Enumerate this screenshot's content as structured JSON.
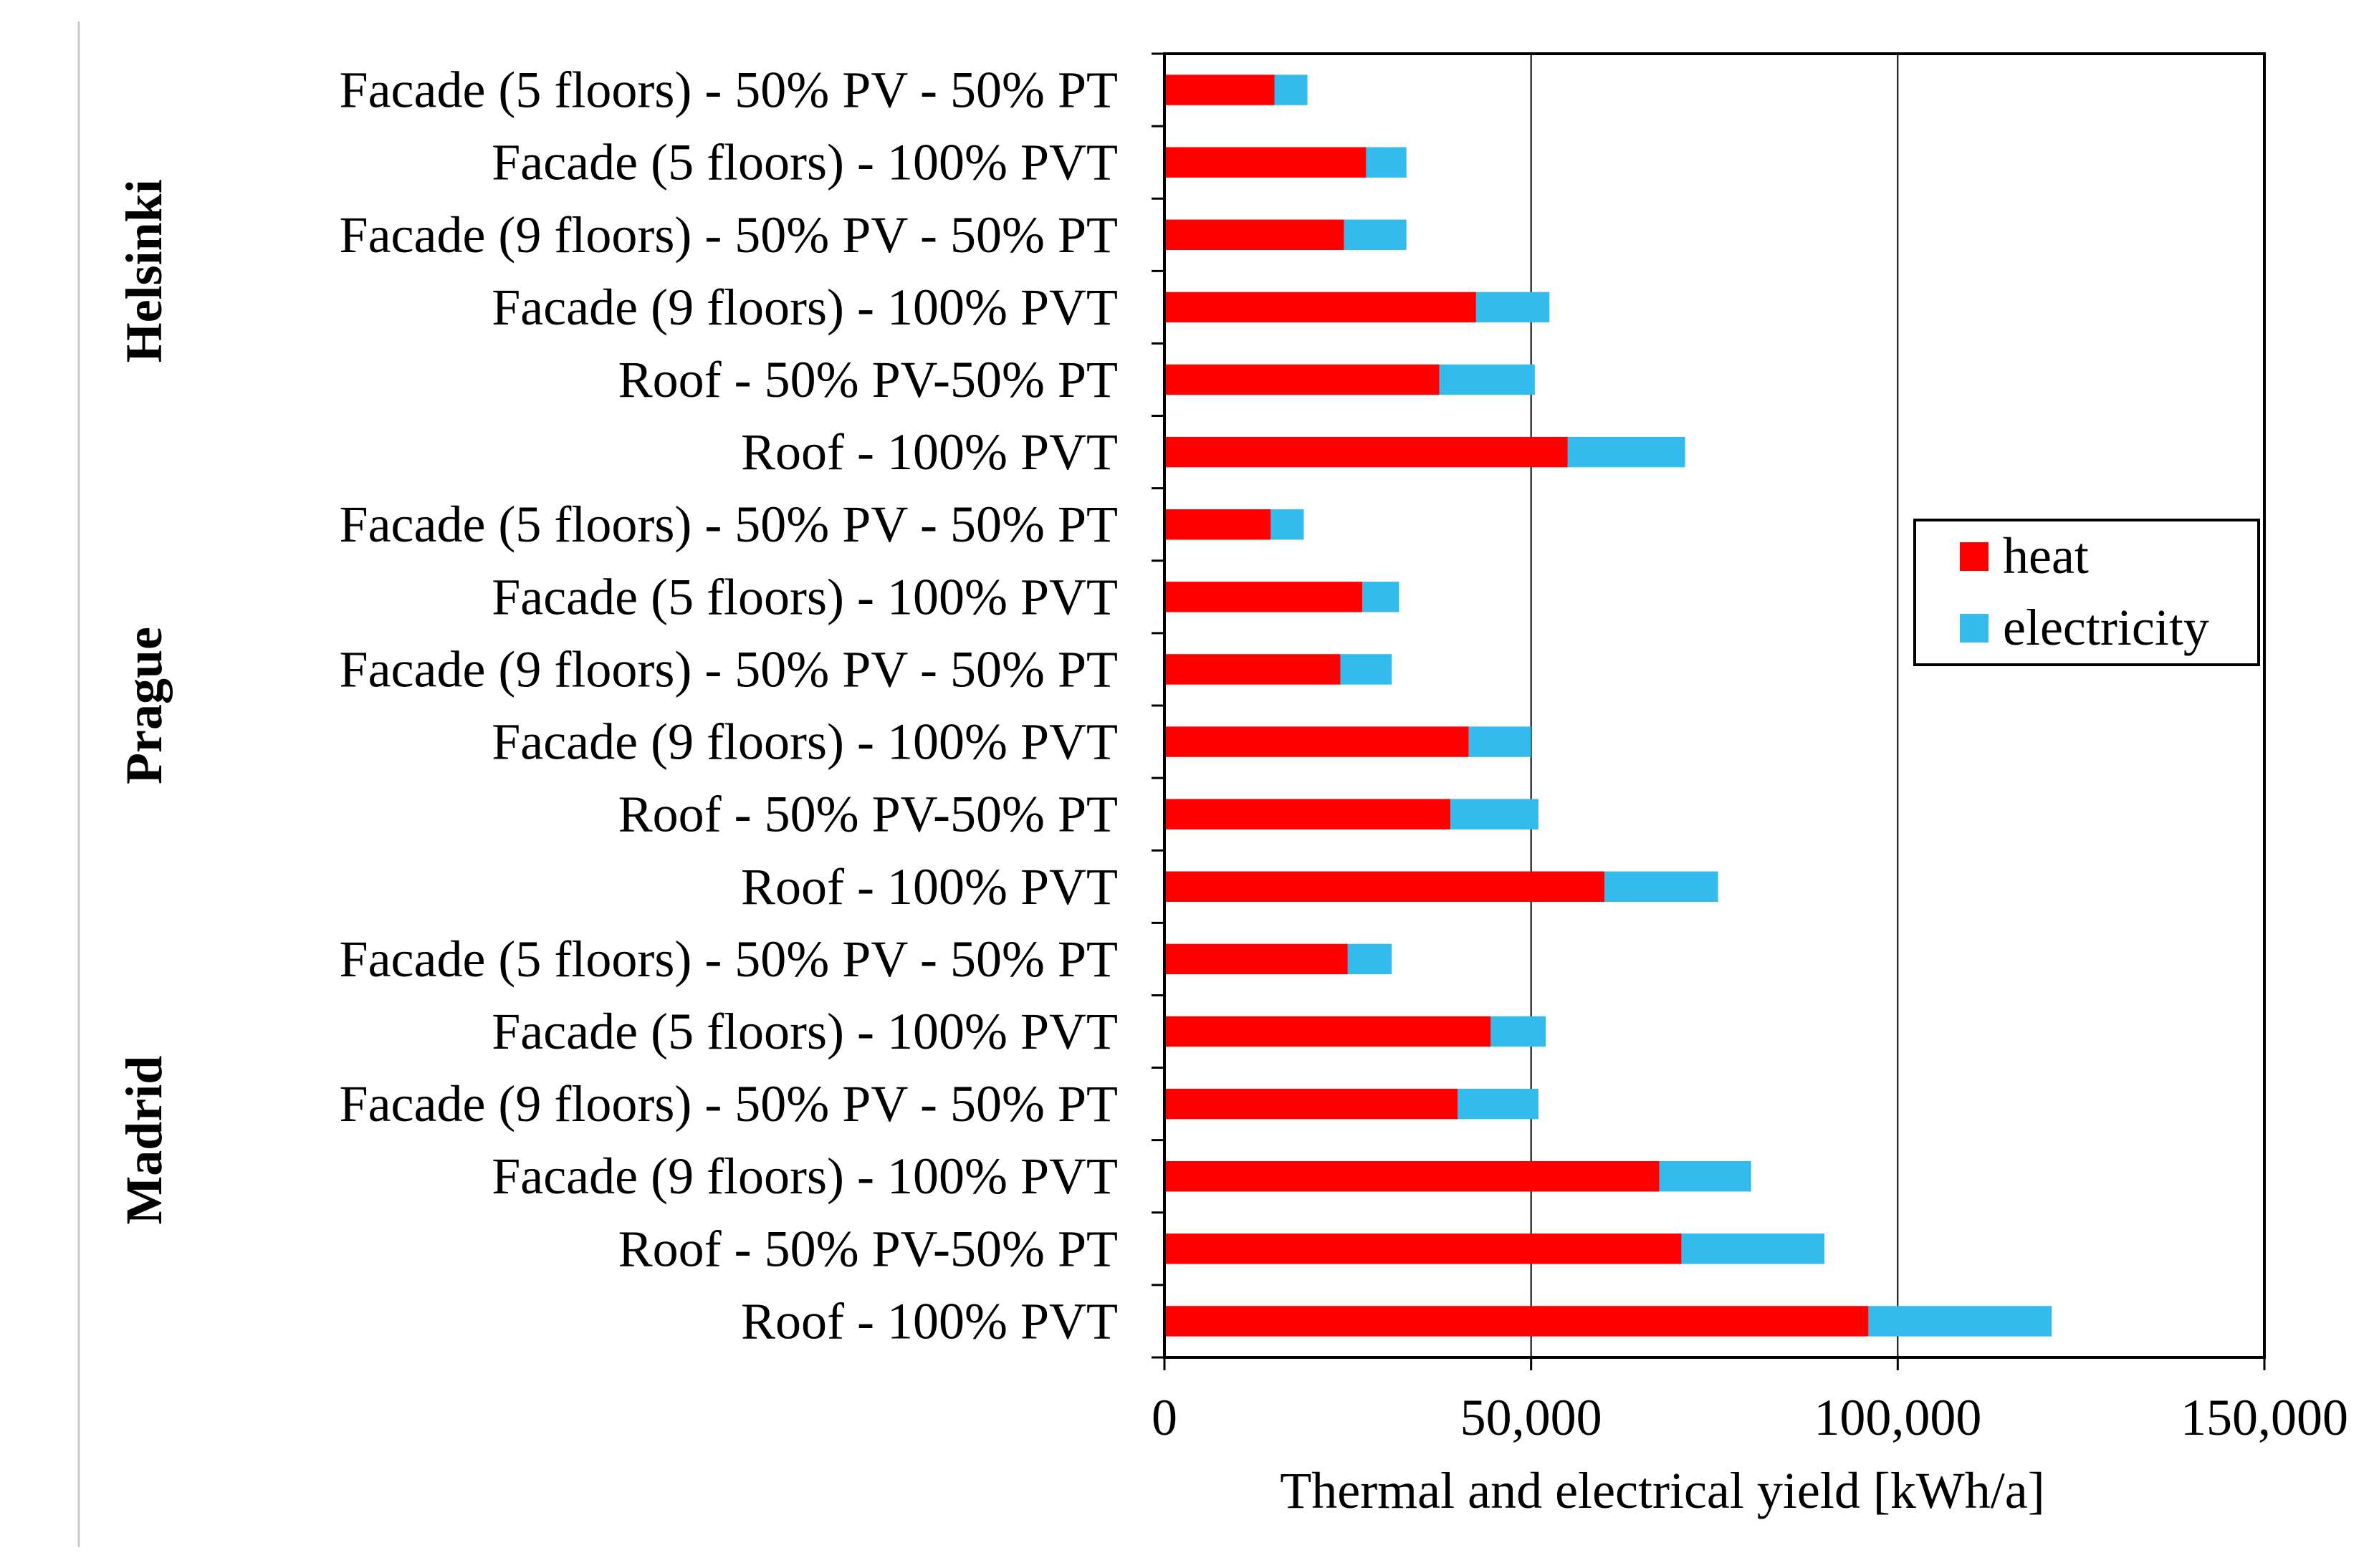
{
  "chart_data": {
    "type": "bar",
    "orientation": "horizontal",
    "stacked": true,
    "title": "",
    "xlabel": "Thermal and electrical yield [kWh/a]",
    "ylabel": "",
    "xlim": [
      0,
      150000
    ],
    "xticks": [
      0,
      50000,
      100000,
      150000
    ],
    "xtick_labels": [
      "0",
      "50,000",
      "100,000",
      "150,000"
    ],
    "grid": "vertical",
    "legend_position": "right",
    "groups": [
      {
        "name": "Helsinki",
        "from": 0,
        "to": 5
      },
      {
        "name": "Prague",
        "from": 6,
        "to": 11
      },
      {
        "name": "Madrid",
        "from": 12,
        "to": 17
      }
    ],
    "categories": [
      "Facade (5 floors) - 50% PV - 50% PT",
      "Facade (5 floors) - 100% PVT",
      "Facade (9 floors) - 50% PV - 50% PT",
      "Facade (9 floors) - 100% PVT",
      "Roof - 50% PV-50% PT",
      "Roof - 100% PVT",
      "Facade (5 floors) - 50% PV - 50% PT",
      "Facade (5 floors) - 100% PVT",
      "Facade (9 floors) - 50% PV - 50% PT",
      "Facade (9 floors) - 100% PVT",
      "Roof - 50% PV-50% PT",
      "Roof - 100% PVT",
      "Facade (5 floors) - 50% PV - 50% PT",
      "Facade (5 floors) - 100% PVT",
      "Facade (9 floors) - 50% PV - 50% PT",
      "Facade (9 floors) - 100% PVT",
      "Roof - 50% PV-50% PT",
      "Roof - 100% PVT"
    ],
    "series": [
      {
        "name": "heat",
        "color": "#ff0000",
        "values": [
          15000,
          27500,
          24500,
          42500,
          37500,
          55000,
          14500,
          27000,
          24000,
          41500,
          39000,
          60000,
          25000,
          44500,
          40000,
          67500,
          70500,
          96000
        ]
      },
      {
        "name": "electricity",
        "color": "#33bbee",
        "values": [
          4500,
          5500,
          8500,
          10000,
          13000,
          16000,
          4500,
          5000,
          7000,
          8500,
          12000,
          15500,
          6000,
          7500,
          11000,
          12500,
          19500,
          25000
        ]
      }
    ]
  }
}
